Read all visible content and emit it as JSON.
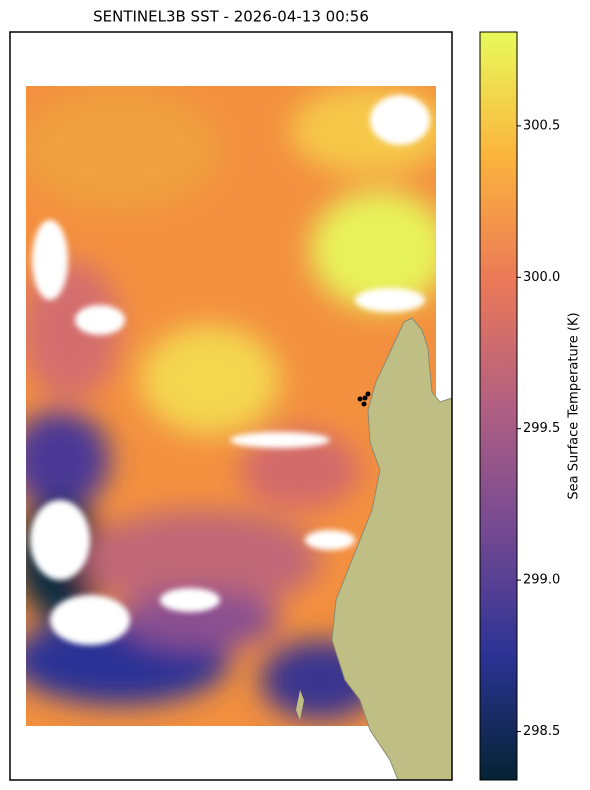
{
  "title": "SENTINEL3B SST - 2026-04-13 00:56",
  "colorbar": {
    "label": "Sea Surface Temperature (K)",
    "clim": [
      298.34,
      300.81
    ],
    "ticks": [
      {
        "value": 298.5,
        "label": "298.5"
      },
      {
        "value": 299.0,
        "label": "299.0"
      },
      {
        "value": 299.5,
        "label": "299.5"
      },
      {
        "value": 300.0,
        "label": "300.0"
      },
      {
        "value": 300.5,
        "label": "300.5"
      }
    ],
    "colormap": [
      "#042333",
      "#2c3395",
      "#744992",
      "#b15f82",
      "#eb7958",
      "#fbb43d",
      "#e8fa5b"
    ]
  }
}
